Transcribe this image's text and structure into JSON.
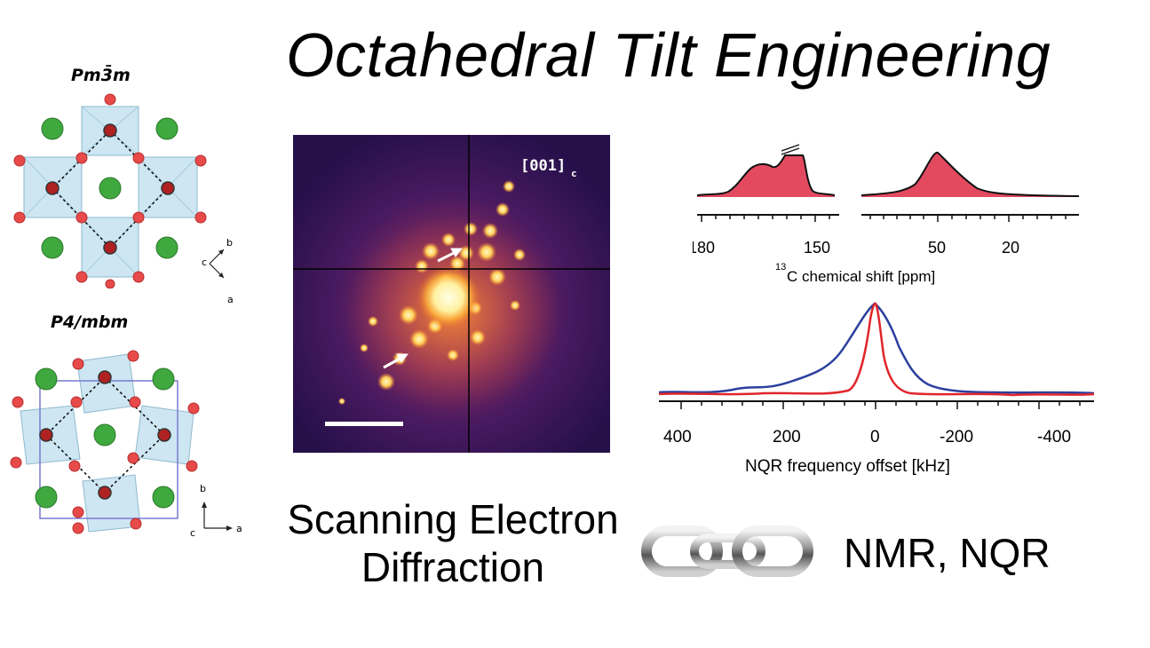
{
  "title": "Octahedral Tilt Engineering",
  "structures": [
    {
      "label": "Pm3̄m",
      "axes": {
        "b": "b",
        "a": "a",
        "c": "c"
      }
    },
    {
      "label": "P4/mbm",
      "axes": {
        "b": "b",
        "a": "a",
        "c": "c"
      }
    }
  ],
  "diffraction": {
    "zone_axis": "[001]",
    "zone_sub": "c"
  },
  "nmr": {
    "axis_label_sup": "13",
    "axis_label": "C chemical shift [ppm]",
    "left_ticks": [
      "180",
      "150"
    ],
    "right_ticks": [
      "50",
      "20"
    ]
  },
  "nqr": {
    "axis_label": "NQR frequency offset [kHz]",
    "ticks": [
      "400",
      "200",
      "0",
      "-200",
      "-400"
    ],
    "colors": {
      "blue": "#2b3f9e",
      "red": "#e0262b"
    }
  },
  "captions": {
    "sed_line1": "Scanning Electron",
    "sed_line2": "Diffraction",
    "nmr": "NMR, NQR"
  },
  "icons": {
    "link": "chain-link-icon"
  },
  "colors": {
    "a_site": "#3fa83f",
    "oxygen": "#e84a4a",
    "b_site": "#b02222",
    "octahedron": "#cde6f2",
    "nmr_fill": "#e34a60"
  }
}
